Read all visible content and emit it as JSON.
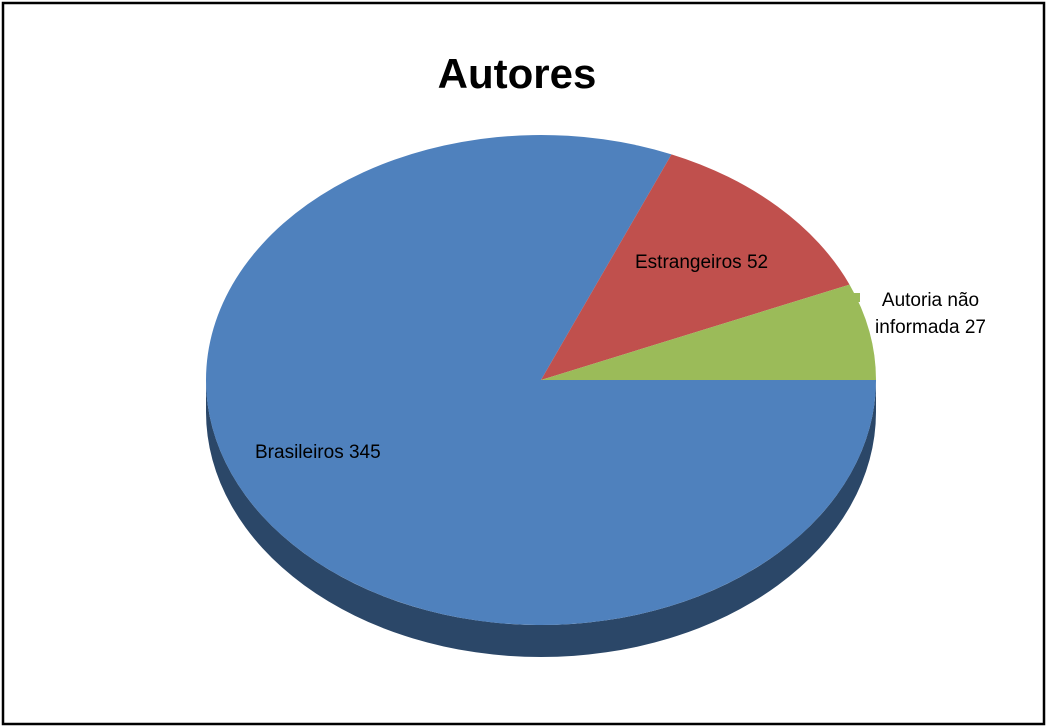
{
  "chart_data": {
    "type": "pie",
    "title": "Autores",
    "categories": [
      "Brasileiros",
      "Estrangeiros",
      "Autoria não informada"
    ],
    "values": [
      345,
      52,
      27
    ],
    "colors": [
      "#4f81bd",
      "#c0504d",
      "#9bbb59"
    ],
    "three_d": true
  }
}
